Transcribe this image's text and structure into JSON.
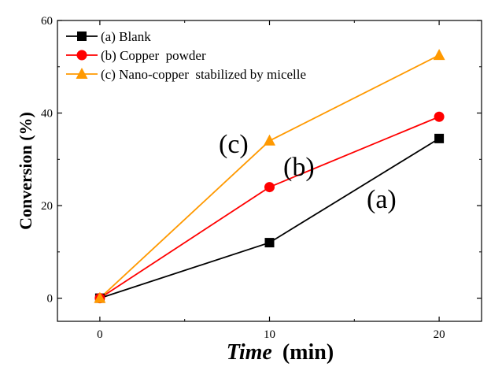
{
  "chart_data": {
    "type": "line",
    "x": [
      0,
      10,
      20
    ],
    "xlim": [
      -2.5,
      22.5
    ],
    "ylim": [
      -5,
      60
    ],
    "xticks": [
      0,
      10,
      20
    ],
    "yticks": [
      0,
      20,
      40,
      60
    ],
    "xlabel_italic": "Time",
    "xlabel_unit": "(min)",
    "ylabel": "Conversion (%)",
    "grid": false,
    "legend_position": "top-left",
    "series": [
      {
        "name": "(a) Blank",
        "values": [
          0,
          12,
          34.5
        ],
        "color": "#000000",
        "marker": "square"
      },
      {
        "name": "(b) Copper  powder",
        "values": [
          0,
          24,
          39.2
        ],
        "color": "#ff0000",
        "marker": "circle"
      },
      {
        "name": "(c) Nano-copper  stabilized by micelle",
        "values": [
          0,
          34,
          52.5
        ],
        "color": "#ff9900",
        "marker": "triangle"
      }
    ],
    "annotations": [
      "(a)",
      "(b)",
      "(c)"
    ]
  }
}
